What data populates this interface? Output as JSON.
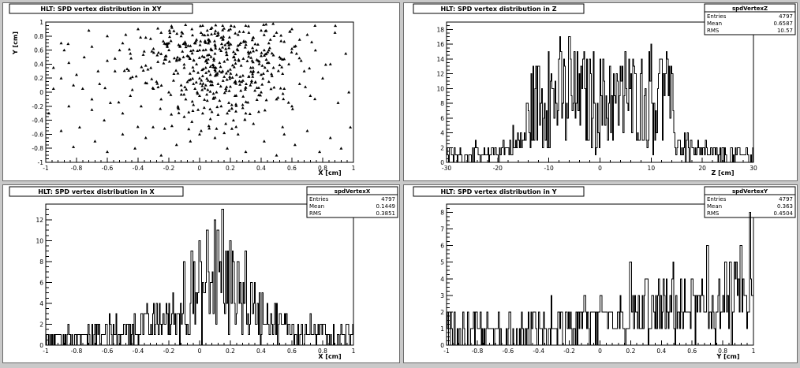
{
  "chart_data": [
    {
      "id": "xy",
      "type": "scatter",
      "title": "HLT: SPD vertex distribution in XY",
      "xlabel": "X [cm]",
      "ylabel": "Y [cm]",
      "xlim": [
        -1,
        1
      ],
      "ylim": [
        -1,
        1
      ],
      "xticks": [
        "-1",
        "-0.8",
        "-0.6",
        "-0.4",
        "-0.2",
        "0",
        "0.2",
        "0.4",
        "0.6",
        "0.8",
        "1"
      ],
      "yticks": [
        "-1",
        "-0.8",
        "-0.6",
        "-0.4",
        "-0.2",
        "0",
        "0.2",
        "0.4",
        "0.6",
        "0.8",
        "1"
      ],
      "grid": false,
      "stats": null,
      "points": [
        [
          0.02,
          0.95
        ],
        [
          0.05,
          0.88
        ],
        [
          0.08,
          0.92
        ],
        [
          0.12,
          0.85
        ],
        [
          -0.05,
          0.9
        ],
        [
          -0.12,
          0.8
        ],
        [
          0.15,
          0.75
        ],
        [
          0.2,
          0.9
        ],
        [
          0.25,
          0.82
        ],
        [
          0.3,
          0.95
        ],
        [
          0.35,
          0.78
        ],
        [
          0.4,
          0.88
        ],
        [
          0.45,
          0.7
        ],
        [
          0.5,
          0.85
        ],
        [
          0.55,
          0.72
        ],
        [
          0.6,
          0.9
        ],
        [
          0.65,
          0.75
        ],
        [
          0.7,
          0.82
        ],
        [
          0.75,
          0.95
        ],
        [
          0.88,
          0.85
        ],
        [
          -0.2,
          0.7
        ],
        [
          -0.25,
          0.85
        ],
        [
          -0.3,
          0.62
        ],
        [
          -0.35,
          0.78
        ],
        [
          -0.4,
          0.9
        ],
        [
          -0.45,
          0.55
        ],
        [
          -0.5,
          0.7
        ],
        [
          -0.55,
          0.48
        ],
        [
          -0.6,
          0.8
        ],
        [
          -0.7,
          0.65
        ],
        [
          -0.75,
          0.5
        ],
        [
          -0.85,
          0.42
        ],
        [
          -0.9,
          0.7
        ],
        [
          -0.95,
          0.35
        ],
        [
          -0.8,
          0.25
        ],
        [
          -0.65,
          0.12
        ],
        [
          -0.55,
          0.3
        ],
        [
          -0.45,
          0.2
        ],
        [
          -0.35,
          0.38
        ],
        [
          -0.28,
          0.15
        ],
        [
          0.0,
          0.6
        ],
        [
          0.03,
          0.5
        ],
        [
          -0.02,
          0.4
        ],
        [
          0.06,
          0.3
        ],
        [
          0.1,
          0.55
        ],
        [
          0.13,
          0.42
        ],
        [
          0.17,
          0.62
        ],
        [
          -0.08,
          0.52
        ],
        [
          -0.1,
          0.35
        ],
        [
          -0.15,
          0.45
        ],
        [
          0.22,
          0.5
        ],
        [
          0.27,
          0.38
        ],
        [
          0.32,
          0.55
        ],
        [
          0.38,
          0.45
        ],
        [
          0.42,
          0.6
        ],
        [
          0.48,
          0.35
        ],
        [
          0.52,
          0.5
        ],
        [
          0.58,
          0.4
        ],
        [
          0.63,
          0.55
        ],
        [
          0.68,
          0.3
        ],
        [
          0.0,
          0.2
        ],
        [
          0.04,
          0.1
        ],
        [
          -0.03,
          0.05
        ],
        [
          0.08,
          0.15
        ],
        [
          0.11,
          0.0
        ],
        [
          -0.06,
          0.18
        ],
        [
          0.16,
          0.22
        ],
        [
          0.2,
          0.08
        ],
        [
          -0.12,
          0.1
        ],
        [
          0.24,
          0.25
        ],
        [
          0.0,
          -0.05
        ],
        [
          0.05,
          -0.12
        ],
        [
          -0.04,
          -0.18
        ],
        [
          0.09,
          -0.08
        ],
        [
          0.14,
          -0.2
        ],
        [
          -0.09,
          -0.1
        ],
        [
          0.19,
          -0.15
        ],
        [
          0.23,
          -0.05
        ],
        [
          -0.14,
          -0.22
        ],
        [
          0.28,
          -0.18
        ],
        [
          0.02,
          -0.3
        ],
        [
          0.07,
          -0.38
        ],
        [
          -0.05,
          -0.42
        ],
        [
          0.12,
          -0.32
        ],
        [
          0.17,
          -0.45
        ],
        [
          -0.1,
          -0.35
        ],
        [
          0.22,
          -0.4
        ],
        [
          0.3,
          -0.3
        ],
        [
          -0.18,
          -0.48
        ],
        [
          0.35,
          -0.45
        ],
        [
          -0.2,
          0.0
        ],
        [
          -0.25,
          -0.1
        ],
        [
          -0.3,
          0.05
        ],
        [
          -0.38,
          -0.2
        ],
        [
          -0.45,
          -0.05
        ],
        [
          -0.5,
          -0.3
        ],
        [
          -0.58,
          -0.15
        ],
        [
          -0.62,
          -0.4
        ],
        [
          -0.7,
          -0.25
        ],
        [
          -0.78,
          -0.5
        ],
        [
          0.33,
          0.1
        ],
        [
          0.4,
          0.0
        ],
        [
          0.45,
          0.15
        ],
        [
          0.5,
          -0.1
        ],
        [
          0.55,
          0.05
        ],
        [
          0.6,
          -0.2
        ],
        [
          0.65,
          0.12
        ],
        [
          0.72,
          -0.05
        ],
        [
          0.8,
          0.2
        ],
        [
          0.9,
          -0.15
        ],
        [
          0.0,
          -0.6
        ],
        [
          -0.06,
          -0.7
        ],
        [
          0.1,
          -0.65
        ],
        [
          0.18,
          -0.8
        ],
        [
          -0.15,
          -0.75
        ],
        [
          0.25,
          -0.6
        ],
        [
          0.3,
          -0.85
        ],
        [
          -0.25,
          -0.9
        ],
        [
          0.42,
          -0.7
        ],
        [
          0.5,
          -0.9
        ],
        [
          0.55,
          -0.6
        ],
        [
          0.62,
          -0.75
        ],
        [
          0.7,
          -0.55
        ],
        [
          0.78,
          -0.85
        ],
        [
          0.85,
          -0.65
        ],
        [
          0.92,
          -0.8
        ],
        [
          -0.35,
          -0.65
        ],
        [
          -0.42,
          -0.8
        ],
        [
          -0.5,
          -0.6
        ],
        [
          -0.6,
          -0.85
        ],
        [
          -0.68,
          -0.7
        ],
        [
          -0.82,
          -0.78
        ],
        [
          -0.9,
          -0.55
        ],
        [
          -0.95,
          0.05
        ],
        [
          0.97,
          0.0
        ],
        [
          0.95,
          0.55
        ],
        [
          0.98,
          -0.5
        ],
        [
          -0.98,
          -0.3
        ],
        [
          0.85,
          0.4
        ],
        [
          -0.88,
          0.6
        ],
        [
          0.06,
          0.72
        ],
        [
          0.1,
          0.68
        ],
        [
          0.14,
          0.78
        ],
        [
          -0.02,
          0.75
        ],
        [
          0.18,
          0.7
        ],
        [
          0.02,
          0.82
        ],
        [
          0.26,
          0.68
        ],
        [
          -0.06,
          0.66
        ],
        [
          0.3,
          0.72
        ],
        [
          0.08,
          0.6
        ],
        [
          0.04,
          0.35
        ],
        [
          0.07,
          0.25
        ],
        [
          -0.01,
          0.28
        ],
        [
          0.1,
          0.32
        ],
        [
          0.15,
          0.3
        ],
        [
          0.05,
          0.42
        ],
        [
          0.12,
          0.12
        ],
        [
          -0.04,
          0.12
        ],
        [
          0.17,
          0.05
        ],
        [
          0.09,
          -0.02
        ],
        [
          0.03,
          -0.22
        ],
        [
          0.08,
          -0.28
        ],
        [
          0.13,
          -0.12
        ],
        [
          -0.01,
          -0.25
        ],
        [
          0.18,
          -0.3
        ],
        [
          0.06,
          -0.48
        ],
        [
          0.11,
          -0.52
        ],
        [
          0.01,
          -0.55
        ],
        [
          0.16,
          -0.58
        ],
        [
          0.21,
          -0.52
        ],
        [
          0.35,
          0.3
        ],
        [
          0.4,
          0.25
        ],
        [
          0.44,
          0.42
        ],
        [
          0.37,
          0.6
        ],
        [
          0.46,
          0.75
        ],
        [
          0.32,
          0.85
        ],
        [
          0.15,
          0.95
        ],
        [
          -0.18,
          0.92
        ],
        [
          0.6,
          0.62
        ],
        [
          0.66,
          0.45
        ],
        [
          -0.6,
          0.45
        ],
        [
          -0.52,
          0.6
        ],
        [
          -0.48,
          0.82
        ],
        [
          -0.66,
          0.3
        ],
        [
          -0.72,
          0.88
        ],
        [
          -0.82,
          0.1
        ],
        [
          -0.9,
          0.2
        ],
        [
          -0.76,
          0.05
        ],
        [
          -0.85,
          -0.2
        ],
        [
          -0.7,
          -0.1
        ]
      ]
    },
    {
      "id": "z",
      "type": "bar",
      "title": "HLT: SPD vertex distribution in Z",
      "xlabel": "Z [cm]",
      "ylabel": "",
      "xlim": [
        -30,
        30
      ],
      "ylim": [
        0,
        19
      ],
      "xticks": [
        "-30",
        "-20",
        "-10",
        "0",
        "10",
        "20",
        "30"
      ],
      "yticks": [
        "0",
        "2",
        "4",
        "6",
        "8",
        "10",
        "12",
        "14",
        "16",
        "18"
      ],
      "grid": false,
      "stats": {
        "name": "spdVertexZ",
        "rows": [
          [
            "Entries",
            "4797"
          ],
          [
            "Mean",
            "0.6587"
          ],
          [
            "RMS",
            "10.57"
          ]
        ]
      },
      "profile": [
        [
          -30,
          1
        ],
        [
          -22,
          1
        ],
        [
          -18,
          2
        ],
        [
          -15,
          3
        ],
        [
          -14,
          6
        ],
        [
          -13,
          8
        ],
        [
          -8,
          9
        ],
        [
          0,
          8
        ],
        [
          8,
          8.5
        ],
        [
          12,
          8.5
        ],
        [
          14,
          7
        ],
        [
          15,
          3
        ],
        [
          18,
          2
        ],
        [
          22,
          1
        ],
        [
          30,
          1
        ]
      ],
      "spikes": [
        [
          -6,
          17
        ],
        [
          -10,
          15
        ],
        [
          -2,
          14
        ],
        [
          5,
          15
        ],
        [
          -4,
          12
        ],
        [
          10,
          16
        ],
        [
          13,
          15
        ],
        [
          -12,
          13
        ],
        [
          2,
          13
        ],
        [
          7,
          12
        ],
        [
          -8,
          14
        ],
        [
          12,
          14
        ]
      ]
    },
    {
      "id": "x",
      "type": "bar",
      "title": "HLT: SPD vertex distribution in X",
      "xlabel": "X [cm]",
      "ylabel": "",
      "xlim": [
        -1,
        1
      ],
      "ylim": [
        0,
        13.5
      ],
      "xticks": [
        "-1",
        "-0.8",
        "-0.6",
        "-0.4",
        "-0.2",
        "0",
        "0.2",
        "0.4",
        "0.6",
        "0.8",
        "1"
      ],
      "yticks": [
        "0",
        "2",
        "4",
        "6",
        "8",
        "10",
        "12"
      ],
      "grid": false,
      "stats": {
        "name": "spdVertexX",
        "rows": [
          [
            "Entries",
            "4797"
          ],
          [
            "Mean",
            "0.1449"
          ],
          [
            "RMS",
            "0.3851"
          ]
        ]
      },
      "profile": [
        [
          -1,
          0.7
        ],
        [
          -0.6,
          1
        ],
        [
          -0.4,
          1.6
        ],
        [
          -0.2,
          2.6
        ],
        [
          -0.05,
          4
        ],
        [
          0.1,
          5.5
        ],
        [
          0.2,
          5.2
        ],
        [
          0.3,
          4.2
        ],
        [
          0.4,
          2.8
        ],
        [
          0.5,
          2
        ],
        [
          0.7,
          1.2
        ],
        [
          1,
          0.8
        ]
      ],
      "spikes": [
        [
          0.15,
          13
        ],
        [
          0.1,
          12
        ],
        [
          0.05,
          11
        ],
        [
          0.2,
          10
        ],
        [
          -0.05,
          9
        ],
        [
          0.25,
          8
        ],
        [
          0.0,
          10
        ],
        [
          0.3,
          9
        ],
        [
          -0.1,
          8
        ],
        [
          0.12,
          11
        ]
      ]
    },
    {
      "id": "y",
      "type": "bar",
      "title": "HLT: SPD vertex distribution in Y",
      "xlabel": "Y [cm]",
      "ylabel": "",
      "xlim": [
        -1,
        1
      ],
      "ylim": [
        0,
        8.5
      ],
      "xticks": [
        "-1",
        "-0.8",
        "-0.6",
        "-0.4",
        "-0.2",
        "0",
        "0.2",
        "0.4",
        "0.6",
        "0.8",
        "1"
      ],
      "yticks": [
        "0",
        "1",
        "2",
        "3",
        "4",
        "5",
        "6",
        "7",
        "8"
      ],
      "grid": false,
      "stats": {
        "name": "spdVertexY",
        "rows": [
          [
            "Entries",
            "4797"
          ],
          [
            "Mean",
            "0.363"
          ],
          [
            "RMS",
            "0.4504"
          ]
        ]
      },
      "profile": [
        [
          -1,
          0.6
        ],
        [
          -0.5,
          0.7
        ],
        [
          -0.2,
          1
        ],
        [
          0,
          1.3
        ],
        [
          0.2,
          1.6
        ],
        [
          0.4,
          1.9
        ],
        [
          0.6,
          2.1
        ],
        [
          0.8,
          2.3
        ],
        [
          1,
          2.4
        ]
      ],
      "spikes": [
        [
          0.98,
          8
        ],
        [
          0.92,
          6
        ],
        [
          0.88,
          5
        ],
        [
          0.7,
          6
        ],
        [
          0.2,
          5
        ],
        [
          0.48,
          5
        ],
        [
          0.82,
          5
        ],
        [
          -0.1,
          3
        ],
        [
          0.3,
          4
        ],
        [
          0.6,
          4
        ]
      ]
    }
  ]
}
